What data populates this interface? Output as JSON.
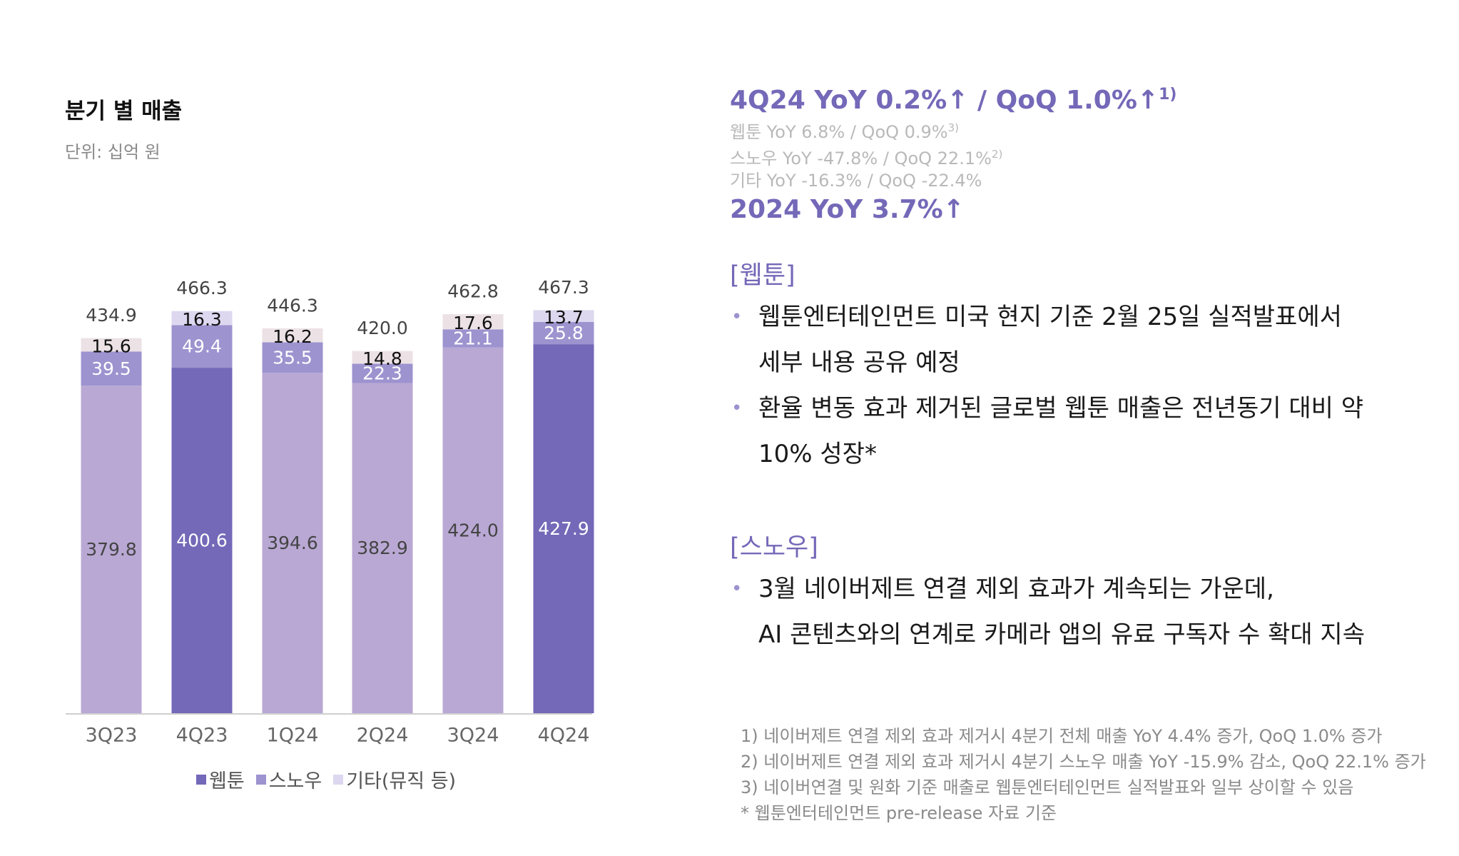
{
  "chart_data": {
    "type": "stacked-bar",
    "title": "분기 별 매출",
    "unit": "단위: 십억 원",
    "categories": [
      "3Q23",
      "4Q23",
      "1Q24",
      "2Q24",
      "3Q24",
      "4Q24"
    ],
    "series": [
      {
        "name": "웹툰",
        "values": [
          379.8,
          400.6,
          394.6,
          382.9,
          424.0,
          427.9
        ]
      },
      {
        "name": "스노우",
        "values": [
          39.5,
          49.4,
          35.5,
          22.3,
          21.1,
          25.8
        ]
      },
      {
        "name": "기타(뮤직 등)",
        "values": [
          15.6,
          16.3,
          16.2,
          14.8,
          17.6,
          13.7
        ]
      }
    ],
    "value_labels": [
      [
        "379.8",
        "39.5",
        "15.6"
      ],
      [
        "400.6",
        "49.4",
        "16.3"
      ],
      [
        "394.6",
        "35.5",
        "16.2"
      ],
      [
        "382.9",
        "22.3",
        "14.8"
      ],
      [
        "424.0",
        "21.1",
        "17.6"
      ],
      [
        "427.9",
        "25.8",
        "13.7"
      ]
    ],
    "totals": [
      "434.9",
      "466.3",
      "446.3",
      "420.0",
      "462.8",
      "467.3"
    ],
    "highlighted_categories": [
      "4Q23",
      "4Q24"
    ],
    "colors": {
      "webtoon": "#b9a8d4",
      "webtoon_highlight": "#7468b8",
      "snow": "#9d93cf",
      "other": "#ece2e6",
      "other_highlight": "#ddd8ef"
    },
    "legend": [
      {
        "label": "웹툰",
        "color": "#7468b8"
      },
      {
        "label": "스노우",
        "color": "#9d93cf"
      },
      {
        "label": "기타(뮤직 등)",
        "color": "#ddd8ef"
      }
    ],
    "legend_position": "bottom"
  },
  "highlights": {
    "main": "4Q24 YoY 0.2%↑ / QoQ 1.0%↑",
    "main_note": "1)",
    "lines": [
      {
        "text": "웹툰 YoY 6.8% / QoQ 0.9%",
        "note": "3)"
      },
      {
        "text": "스노우 YoY -47.8% / QoQ 22.1%",
        "note": "2)"
      },
      {
        "text": "기타 YoY -16.3% / QoQ -22.4%",
        "note": ""
      }
    ],
    "annual": "2024 YoY 3.7%↑"
  },
  "sections": {
    "webtoon": {
      "title": "[웹툰]",
      "bullets": [
        [
          "웹툰엔터테인먼트 미국 현지 기준 2월 25일 실적발표에서",
          "세부 내용 공유 예정"
        ],
        [
          "환율 변동 효과 제거된 글로벌 웹툰 매출은 전년동기 대비 약",
          "10% 성장*"
        ]
      ]
    },
    "snow": {
      "title": "[스노우]",
      "bullets": [
        [
          "3월 네이버제트 연결 제외 효과가 계속되는 가운데,",
          "AI 콘텐츠와의 연계로 카메라 앱의 유료 구독자 수 확대 지속"
        ]
      ]
    },
    "bullet_symbol": "•"
  },
  "footnotes": [
    "1) 네이버제트 연결 제외 효과 제거시 4분기 전체 매출 YoY 4.4% 증가, QoQ 1.0% 증가",
    "2) 네이버제트 연결 제외 효과 제거시 4분기 스노우 매출 YoY -15.9% 감소, QoQ 22.1% 증가",
    "3) 네이버연결 및 원화 기준 매출로 웹툰엔터테인먼트 실적발표와 일부 상이할 수 있음",
    "* 웹툰엔터테인먼트  pre-release 자료 기준"
  ]
}
